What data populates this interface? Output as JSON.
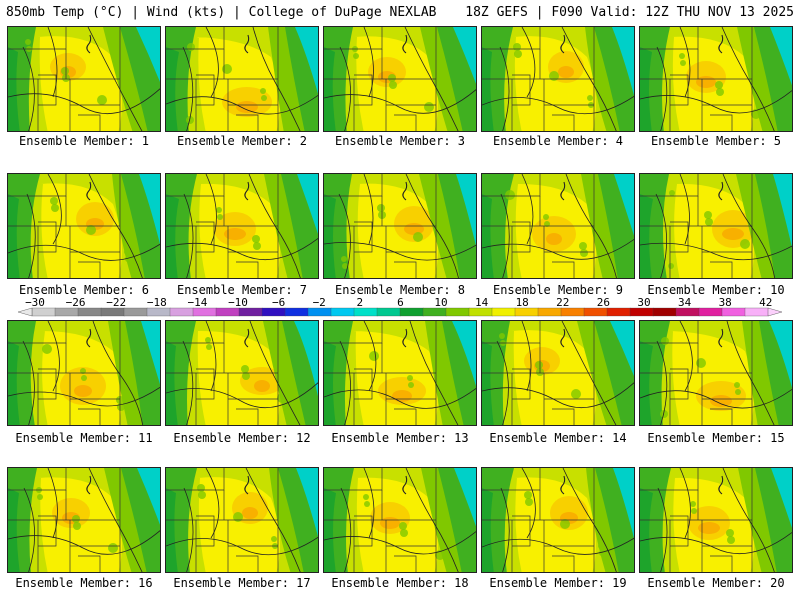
{
  "header": {
    "left_title": "850mb Temp (°C) | Wind (kts) | College of DuPage NEXLAB",
    "right_title": "18Z GEFS | F090 Valid: 12Z THU NOV 13 2025"
  },
  "members": [
    {
      "label": "Ensemble Member: 1"
    },
    {
      "label": "Ensemble Member: 2"
    },
    {
      "label": "Ensemble Member: 3"
    },
    {
      "label": "Ensemble Member: 4"
    },
    {
      "label": "Ensemble Member: 5"
    },
    {
      "label": "Ensemble Member: 6"
    },
    {
      "label": "Ensemble Member: 7"
    },
    {
      "label": "Ensemble Member: 8"
    },
    {
      "label": "Ensemble Member: 9"
    },
    {
      "label": "Ensemble Member: 10"
    },
    {
      "label": "Ensemble Member: 11"
    },
    {
      "label": "Ensemble Member: 12"
    },
    {
      "label": "Ensemble Member: 13"
    },
    {
      "label": "Ensemble Member: 14"
    },
    {
      "label": "Ensemble Member: 15"
    },
    {
      "label": "Ensemble Member: 16"
    },
    {
      "label": "Ensemble Member: 17"
    },
    {
      "label": "Ensemble Member: 18"
    },
    {
      "label": "Ensemble Member: 19"
    },
    {
      "label": "Ensemble Member: 20"
    }
  ],
  "colorbar": {
    "ticks": [
      "−30",
      "−26",
      "−22",
      "−18",
      "−14",
      "−10",
      "−6",
      "−2",
      "2",
      "6",
      "10",
      "14",
      "18",
      "22",
      "26",
      "30",
      "34",
      "38",
      "42"
    ],
    "colors": [
      "#d0d0d0",
      "#a8a8a8",
      "#888888",
      "#7a7a7a",
      "#9a9a9a",
      "#b8b8c8",
      "#d8a0e0",
      "#e070e0",
      "#c040c0",
      "#7020a0",
      "#3010c0",
      "#1030e0",
      "#0090f0",
      "#00c8f0",
      "#00e0c8",
      "#00c890",
      "#10a030",
      "#40b020",
      "#80c800",
      "#c0e000",
      "#f0f000",
      "#f8d000",
      "#f8a800",
      "#f88000",
      "#f05000",
      "#e02000",
      "#c00000",
      "#a00000",
      "#c01060",
      "#e020a0",
      "#f060e0",
      "#f8b0f8"
    ]
  },
  "palette": {
    "teal": "#00d0c8",
    "green_dark": "#10a030",
    "green": "#40b020",
    "green_light": "#80c800",
    "yellow_green": "#c8e000",
    "yellow": "#f8f000",
    "gold": "#f8d000",
    "orange": "#f8a800"
  }
}
